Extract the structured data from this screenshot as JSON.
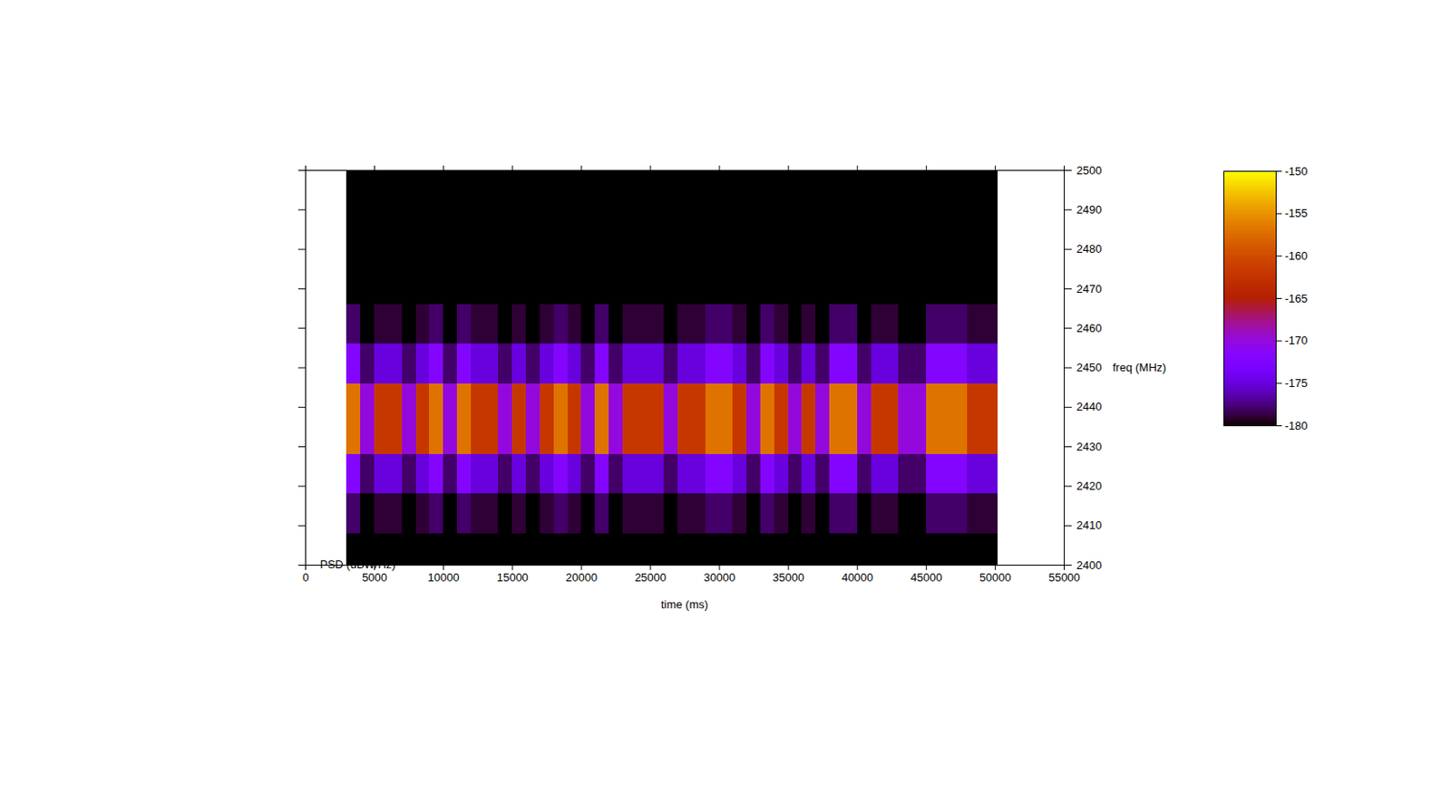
{
  "chart_data": {
    "type": "heatmap",
    "xlabel": "time (ms)",
    "ylabel": "freq (MHz)",
    "colorbar_label": "PSD (dBW/Hz)",
    "xlim": [
      0,
      55000
    ],
    "xticks": [
      0,
      5000,
      10000,
      15000,
      20000,
      25000,
      30000,
      35000,
      40000,
      45000,
      50000,
      55000
    ],
    "ylim": [
      2400,
      2500
    ],
    "yticks": [
      2400,
      2410,
      2420,
      2430,
      2440,
      2450,
      2460,
      2470,
      2480,
      2490,
      2500
    ],
    "color_range": [
      -180,
      -150
    ],
    "color_ticks": [
      -150,
      -155,
      -160,
      -165,
      -170,
      -175,
      -180
    ],
    "time_edges": [
      3000,
      4000,
      5000,
      6000,
      7000,
      8000,
      9000,
      10000,
      11000,
      12000,
      13000,
      14000,
      15000,
      16000,
      17000,
      18000,
      19000,
      20000,
      21000,
      22000,
      23000,
      24000,
      25000,
      26000,
      27000,
      28000,
      29000,
      30000,
      31000,
      32000,
      33000,
      34000,
      35000,
      36000,
      37000,
      38000,
      39000,
      40000,
      41000,
      42000,
      43000,
      44000,
      45000,
      46000,
      47000,
      48000,
      49000,
      50200
    ],
    "freq_edges": [
      2400,
      2408,
      2418,
      2428,
      2446,
      2456,
      2466,
      2500
    ],
    "cells": [
      [
        -180,
        -180,
        -180,
        -180,
        -180,
        -180,
        -180,
        -180,
        -180,
        -180,
        -180,
        -180,
        -180,
        -180,
        -180,
        -180,
        -180,
        -180,
        -180,
        -180,
        -180,
        -180,
        -180,
        -180,
        -180,
        -180,
        -180,
        -180,
        -180,
        -180,
        -180,
        -180,
        -180,
        -180,
        -180,
        -180,
        -180,
        -180,
        -180,
        -180,
        -180,
        -180,
        -180,
        -180,
        -180,
        -180,
        -180
      ],
      [
        -178,
        -180,
        -179,
        -179,
        -180,
        -179,
        -178,
        -180,
        -178,
        -179,
        -179,
        -180,
        -179,
        -180,
        -179,
        -178,
        -179,
        -180,
        -178,
        -180,
        -179,
        -179,
        -179,
        -180,
        -179,
        -179,
        -178,
        -178,
        -179,
        -180,
        -178,
        -179,
        -180,
        -179,
        -180,
        -178,
        -178,
        -180,
        -179,
        -179,
        -180,
        -180,
        -178,
        -178,
        -178,
        -179,
        -179
      ],
      [
        -172,
        -178,
        -175,
        -175,
        -178,
        -175,
        -172,
        -178,
        -172,
        -175,
        -175,
        -178,
        -175,
        -178,
        -175,
        -172,
        -175,
        -178,
        -172,
        -178,
        -175,
        -175,
        -175,
        -178,
        -175,
        -175,
        -172,
        -172,
        -175,
        -178,
        -172,
        -175,
        -178,
        -175,
        -178,
        -172,
        -172,
        -178,
        -175,
        -175,
        -178,
        -178,
        -172,
        -172,
        -172,
        -175,
        -175
      ],
      [
        -157,
        -170,
        -162,
        -162,
        -170,
        -162,
        -157,
        -170,
        -157,
        -162,
        -162,
        -170,
        -162,
        -170,
        -162,
        -157,
        -162,
        -170,
        -157,
        -170,
        -162,
        -162,
        -162,
        -170,
        -162,
        -162,
        -157,
        -157,
        -162,
        -170,
        -157,
        -162,
        -170,
        -162,
        -170,
        -157,
        -157,
        -170,
        -162,
        -162,
        -170,
        -170,
        -157,
        -157,
        -157,
        -162,
        -162
      ],
      [
        -172,
        -178,
        -175,
        -175,
        -178,
        -175,
        -172,
        -178,
        -172,
        -175,
        -175,
        -178,
        -175,
        -178,
        -175,
        -172,
        -175,
        -178,
        -172,
        -178,
        -175,
        -175,
        -175,
        -178,
        -175,
        -175,
        -172,
        -172,
        -175,
        -178,
        -172,
        -175,
        -178,
        -175,
        -178,
        -172,
        -172,
        -178,
        -175,
        -175,
        -178,
        -178,
        -172,
        -172,
        -172,
        -175,
        -175
      ],
      [
        -178,
        -180,
        -179,
        -179,
        -180,
        -179,
        -178,
        -180,
        -178,
        -179,
        -179,
        -180,
        -179,
        -180,
        -179,
        -178,
        -179,
        -180,
        -178,
        -180,
        -179,
        -179,
        -179,
        -180,
        -179,
        -179,
        -178,
        -178,
        -179,
        -180,
        -178,
        -179,
        -180,
        -179,
        -180,
        -178,
        -178,
        -180,
        -179,
        -179,
        -180,
        -180,
        -178,
        -178,
        -178,
        -179,
        -179
      ],
      [
        -180,
        -180,
        -180,
        -180,
        -180,
        -180,
        -180,
        -180,
        -180,
        -180,
        -180,
        -180,
        -180,
        -180,
        -180,
        -180,
        -180,
        -180,
        -180,
        -180,
        -180,
        -180,
        -180,
        -180,
        -180,
        -180,
        -180,
        -180,
        -180,
        -180,
        -180,
        -180,
        -180,
        -180,
        -180,
        -180,
        -180,
        -180,
        -180,
        -180,
        -180,
        -180,
        -180,
        -180,
        -180,
        -180,
        -180
      ]
    ]
  }
}
